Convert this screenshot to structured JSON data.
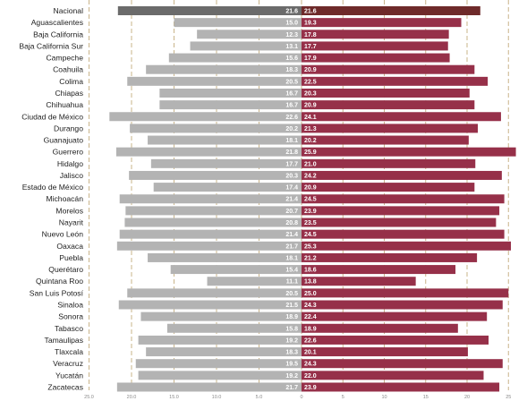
{
  "chart_data": {
    "type": "bar",
    "orientation": "horizontal-diverging",
    "categories": [
      "Nacional",
      "Aguascalientes",
      "Baja California",
      "Baja California Sur",
      "Campeche",
      "Coahuila",
      "Colima",
      "Chiapas",
      "Chihuahua",
      "Ciudad de México",
      "Durango",
      "Guanajuato",
      "Guerrero",
      "Hidalgo",
      "Jalisco",
      "Estado de México",
      "Michoacán",
      "Morelos",
      "Nayarit",
      "Nuevo León",
      "Oaxaca",
      "Puebla",
      "Querétaro",
      "Quintana Roo",
      "San Luis Potosí",
      "Sinaloa",
      "Sonora",
      "Tabasco",
      "Tamaulipas",
      "Tlaxcala",
      "Veracruz",
      "Yucatán",
      "Zacatecas"
    ],
    "series": [
      {
        "values": [
          21.6,
          15.0,
          12.3,
          13.1,
          15.6,
          18.3,
          20.5,
          16.7,
          16.7,
          22.6,
          20.2,
          18.1,
          21.8,
          17.7,
          20.3,
          17.4,
          21.4,
          20.7,
          20.8,
          21.4,
          21.7,
          18.1,
          15.4,
          11.1,
          20.5,
          21.5,
          18.9,
          15.8,
          19.2,
          18.3,
          19.5,
          19.2,
          21.7
        ],
        "direction": "left",
        "color": "#b3b3b3",
        "first_color": "#6b6b6b"
      },
      {
        "values": [
          21.6,
          19.3,
          17.8,
          17.7,
          17.9,
          20.9,
          22.5,
          20.3,
          20.9,
          24.1,
          21.3,
          20.2,
          25.9,
          21.0,
          24.2,
          20.9,
          24.5,
          23.9,
          23.5,
          24.5,
          25.3,
          21.2,
          18.6,
          13.8,
          25.0,
          24.3,
          22.4,
          18.9,
          22.6,
          20.1,
          24.3,
          22.0,
          23.9
        ],
        "direction": "right",
        "color": "#963049",
        "first_color": "#6e2a2a"
      }
    ],
    "x_ticks": [
      "25.0",
      "20.0",
      "15.0",
      "10.0",
      "5.0",
      "0",
      "5",
      "10",
      "15",
      "20",
      "25"
    ],
    "xlim": [
      -25,
      25
    ],
    "grid": "vertical-dashed"
  }
}
